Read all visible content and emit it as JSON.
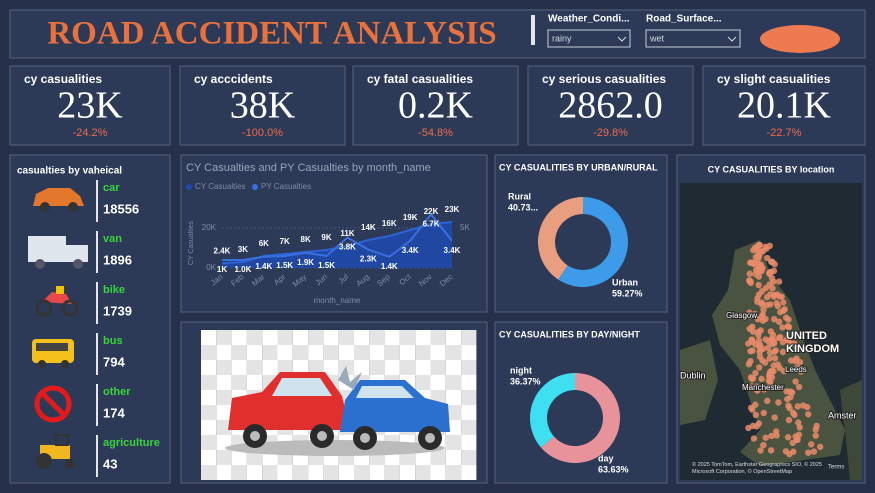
{
  "header": {
    "title": "ROAD ACCIDENT ANALYSIS",
    "slicers": [
      {
        "label": "Weather_Condi...",
        "value": "rainy"
      },
      {
        "label": "Road_Surface...",
        "value": "wet"
      }
    ]
  },
  "kpis": [
    {
      "title": "cy casualities",
      "value": "23K",
      "change": "-24.2%"
    },
    {
      "title": "cy acccidents",
      "value": "38K",
      "change": "-100.0%"
    },
    {
      "title": "cy fatal casualities",
      "value": "0.2K",
      "change": "-54.8%"
    },
    {
      "title": "cy serious casualities",
      "value": "2862.0",
      "change": "-29.8%"
    },
    {
      "title": "cy slight casualities",
      "value": "20.1K",
      "change": "-22.7%"
    }
  ],
  "vehicles": {
    "title": "casualties by vaheical",
    "items": [
      {
        "name": "car",
        "value": 18556
      },
      {
        "name": "van",
        "value": 1896
      },
      {
        "name": "bike",
        "value": 1739
      },
      {
        "name": "bus",
        "value": 794
      },
      {
        "name": "other",
        "value": 174
      },
      {
        "name": "agriculture",
        "value": 43
      }
    ]
  },
  "chart_data": [
    {
      "type": "line",
      "title": "CY Casualties and PY Casualties by month_name",
      "categories": [
        "Jan",
        "Feb",
        "Mar",
        "Apr",
        "May",
        "Jun",
        "Jul",
        "Aug",
        "Sep",
        "Oct",
        "Nov",
        "Dec"
      ],
      "series": [
        {
          "name": "CY Casualties",
          "color": "#1f4bb0",
          "values": [
            2400,
            3000,
            6000,
            7000,
            8000,
            9000,
            11000,
            14000,
            16000,
            19000,
            22000,
            23000
          ],
          "value_labels": [
            "2.4K",
            "3K",
            "6K",
            "7K",
            "8K",
            "9K",
            "11K",
            "14K",
            "16K",
            "19K",
            "22K",
            "23K"
          ]
        },
        {
          "name": "PY Casualties",
          "color": "#3a6fe0",
          "axis": "y2",
          "values": [
            1000,
            1000,
            1400,
            1500,
            1900,
            1500,
            3800,
            2300,
            1400,
            3400,
            6700,
            3400
          ],
          "value_labels": [
            "1K",
            "1.0K",
            "1.4K",
            "1.5K",
            "1.9K",
            "1.5K",
            "3.8K",
            "2.3K",
            "1.4K",
            "3.4K",
            "6.7K",
            "3.4K"
          ]
        }
      ],
      "xlabel": "month_name",
      "ylabel": "CY Casualties",
      "ylim": [
        0,
        25000
      ],
      "yticks": [
        {
          "value": 0,
          "label": "0K"
        },
        {
          "value": 20000,
          "label": "20K"
        }
      ],
      "y2lim": [
        0,
        6250
      ],
      "y2ticks": [
        {
          "value": 5000,
          "label": "5K"
        }
      ]
    },
    {
      "type": "pie",
      "title": "CY CASUALITIES BY URBAN/RURAL",
      "categories": [
        "Urban",
        "Rural"
      ],
      "values": [
        59.27,
        40.73
      ],
      "value_labels": [
        "59.27%",
        "40.73..."
      ],
      "colors": [
        "#3d9be9",
        "#e99f7f"
      ]
    },
    {
      "type": "pie",
      "title": "CY CASUALITIES BY DAY/NIGHT",
      "categories": [
        "day",
        "night"
      ],
      "values": [
        63.63,
        36.37
      ],
      "value_labels": [
        "63.63%",
        "36.37%"
      ],
      "colors": [
        "#e8939b",
        "#3ddff0"
      ]
    }
  ],
  "map": {
    "title": "CY CASUALITIES BY location",
    "labels": [
      "Glasgow",
      "UNITED",
      "KINGDOM",
      "Dublin",
      "Manchester",
      "Leeds",
      "Amster"
    ],
    "attribution": "© 2025 TomTom, Earthstar Geographics SIO, © 2025 Microsoft Corporation, © OpenStreetMap",
    "terms": "Terms"
  }
}
